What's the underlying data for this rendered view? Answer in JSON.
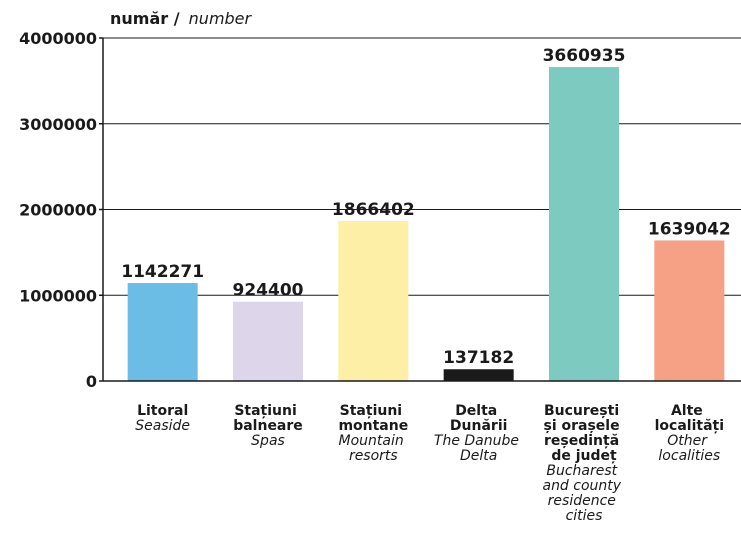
{
  "chart_data": {
    "type": "bar",
    "ylabel": "număr /",
    "ylabel_translation": "number",
    "categories": [
      "Litoral",
      "Stațiuni balneare",
      "Stațiuni montane",
      "Delta Dunării",
      "București și orașele reședință de județ",
      "Alte localități"
    ],
    "category_translations": [
      "Seaside",
      "Spas",
      "Mountain resorts",
      "The Danube Delta",
      "Bucharest and county residence cities",
      "Other localities"
    ],
    "values": [
      1142271,
      924400,
      1866402,
      137182,
      3660935,
      1639042
    ],
    "colors": [
      "#6cbde6",
      "#ddd5ea",
      "#fdf0a6",
      "#1a1a1a",
      "#7dcbc0",
      "#f6a085"
    ],
    "ylim": [
      0,
      4000000
    ],
    "yticks": [
      0,
      1000000,
      2000000,
      3000000,
      4000000
    ],
    "grid": true
  }
}
